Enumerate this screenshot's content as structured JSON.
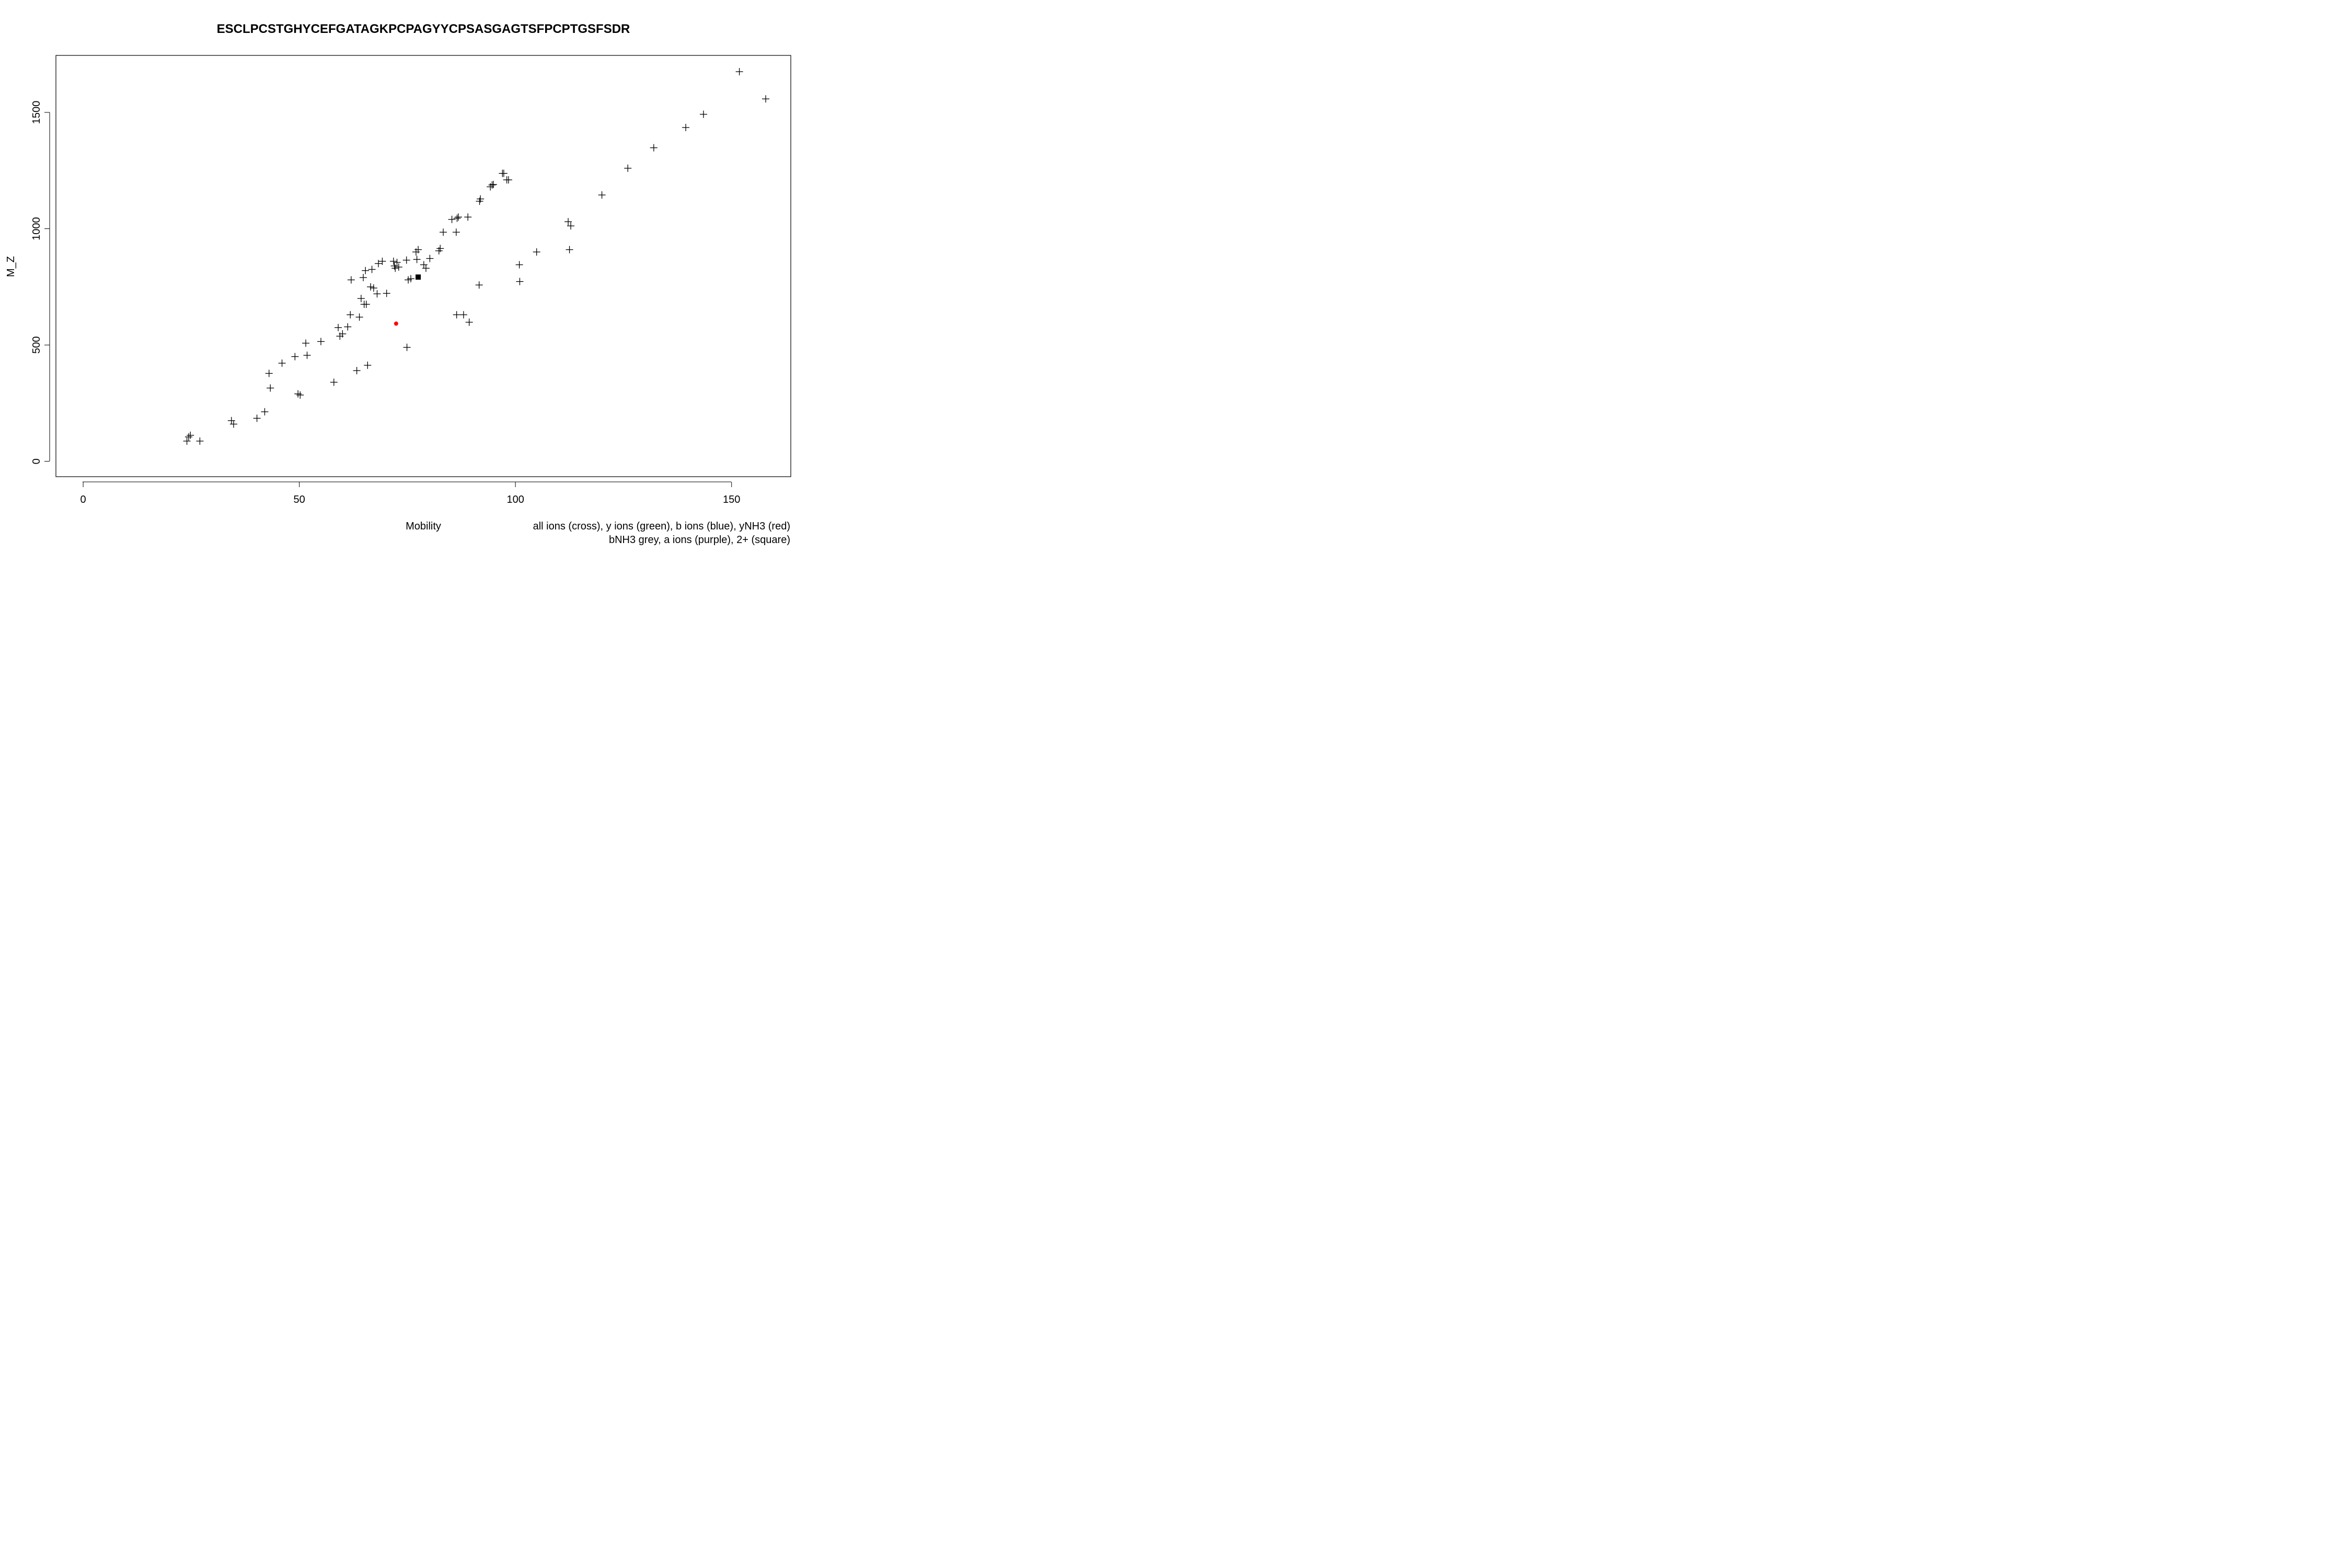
{
  "chart_data": {
    "type": "scatter",
    "title": "ESCLPCSTGHYCEFGATAGKPCPAGYYCPSASGAGTSFPCPTGSFSDR",
    "xlabel": "Mobility",
    "ylabel": "M_Z",
    "xlim": [
      -6.3,
      163.7
    ],
    "ylim": [
      -66,
      1745
    ],
    "x_ticks": [
      "0",
      "50",
      "100",
      "150"
    ],
    "y_ticks": [
      "0",
      "500",
      "1000",
      "1500"
    ],
    "legend": [
      "all ions (cross), y ions (green), b ions (blue), yNH3 (red)",
      "bNH3 grey, a ions (purple), 2+ (square)"
    ],
    "series": [
      {
        "marker": "cross",
        "color": "#000000",
        "points": [
          [
            24.0,
            87
          ],
          [
            24.4,
            105
          ],
          [
            24.8,
            112
          ],
          [
            27.0,
            87
          ],
          [
            34.3,
            175
          ],
          [
            34.8,
            160
          ],
          [
            40.2,
            185
          ],
          [
            42.0,
            213
          ],
          [
            43.0,
            378
          ],
          [
            43.3,
            315
          ],
          [
            46.0,
            422
          ],
          [
            49.0,
            450
          ],
          [
            49.7,
            290
          ],
          [
            50.2,
            285
          ],
          [
            51.5,
            508
          ],
          [
            51.8,
            456
          ],
          [
            55.0,
            515
          ],
          [
            58.0,
            340
          ],
          [
            59.0,
            575
          ],
          [
            59.4,
            538
          ],
          [
            60.0,
            548
          ],
          [
            61.2,
            578
          ],
          [
            61.8,
            630
          ],
          [
            62.0,
            780
          ],
          [
            63.3,
            390
          ],
          [
            63.9,
            620
          ],
          [
            64.3,
            700
          ],
          [
            64.8,
            790
          ],
          [
            65.0,
            675
          ],
          [
            65.3,
            820
          ],
          [
            65.5,
            675
          ],
          [
            65.8,
            413
          ],
          [
            66.5,
            750
          ],
          [
            66.8,
            825
          ],
          [
            67.2,
            745
          ],
          [
            68.0,
            720
          ],
          [
            68.3,
            850
          ],
          [
            69.2,
            860
          ],
          [
            70.2,
            722
          ],
          [
            71.8,
            860
          ],
          [
            72.0,
            840
          ],
          [
            72.2,
            830
          ],
          [
            72.6,
            855
          ],
          [
            73.0,
            835
          ],
          [
            74.8,
            865
          ],
          [
            74.9,
            490
          ],
          [
            75.2,
            780
          ],
          [
            75.8,
            785
          ],
          [
            77.0,
            900
          ],
          [
            77.2,
            868
          ],
          [
            77.5,
            910
          ],
          [
            78.8,
            845
          ],
          [
            79.3,
            830
          ],
          [
            80.2,
            872
          ],
          [
            82.3,
            905
          ],
          [
            82.6,
            915
          ],
          [
            83.3,
            985
          ],
          [
            85.3,
            1040
          ],
          [
            86.3,
            985
          ],
          [
            86.4,
            630
          ],
          [
            86.5,
            1045
          ],
          [
            86.8,
            1050
          ],
          [
            88.0,
            630
          ],
          [
            89.0,
            1050
          ],
          [
            89.3,
            598
          ],
          [
            91.6,
            758
          ],
          [
            91.7,
            1118
          ],
          [
            91.9,
            1128
          ],
          [
            94.2,
            1180
          ],
          [
            94.6,
            1188
          ],
          [
            94.9,
            1190
          ],
          [
            97.0,
            1238
          ],
          [
            97.3,
            1238
          ],
          [
            98.0,
            1210
          ],
          [
            98.4,
            1210
          ],
          [
            100.9,
            845
          ],
          [
            101.0,
            773
          ],
          [
            104.9,
            900
          ],
          [
            112.2,
            1030
          ],
          [
            112.5,
            910
          ],
          [
            112.8,
            1012
          ],
          [
            120.0,
            1145
          ],
          [
            126.0,
            1260
          ],
          [
            132.0,
            1348
          ],
          [
            139.4,
            1435
          ],
          [
            143.5,
            1492
          ],
          [
            151.8,
            1675
          ],
          [
            157.9,
            1558
          ]
        ]
      },
      {
        "marker": "square",
        "color": "#000000",
        "points": [
          [
            77.5,
            792
          ]
        ]
      },
      {
        "marker": "dot",
        "color": "#ff0000",
        "points": [
          [
            72.4,
            592
          ]
        ]
      }
    ]
  }
}
